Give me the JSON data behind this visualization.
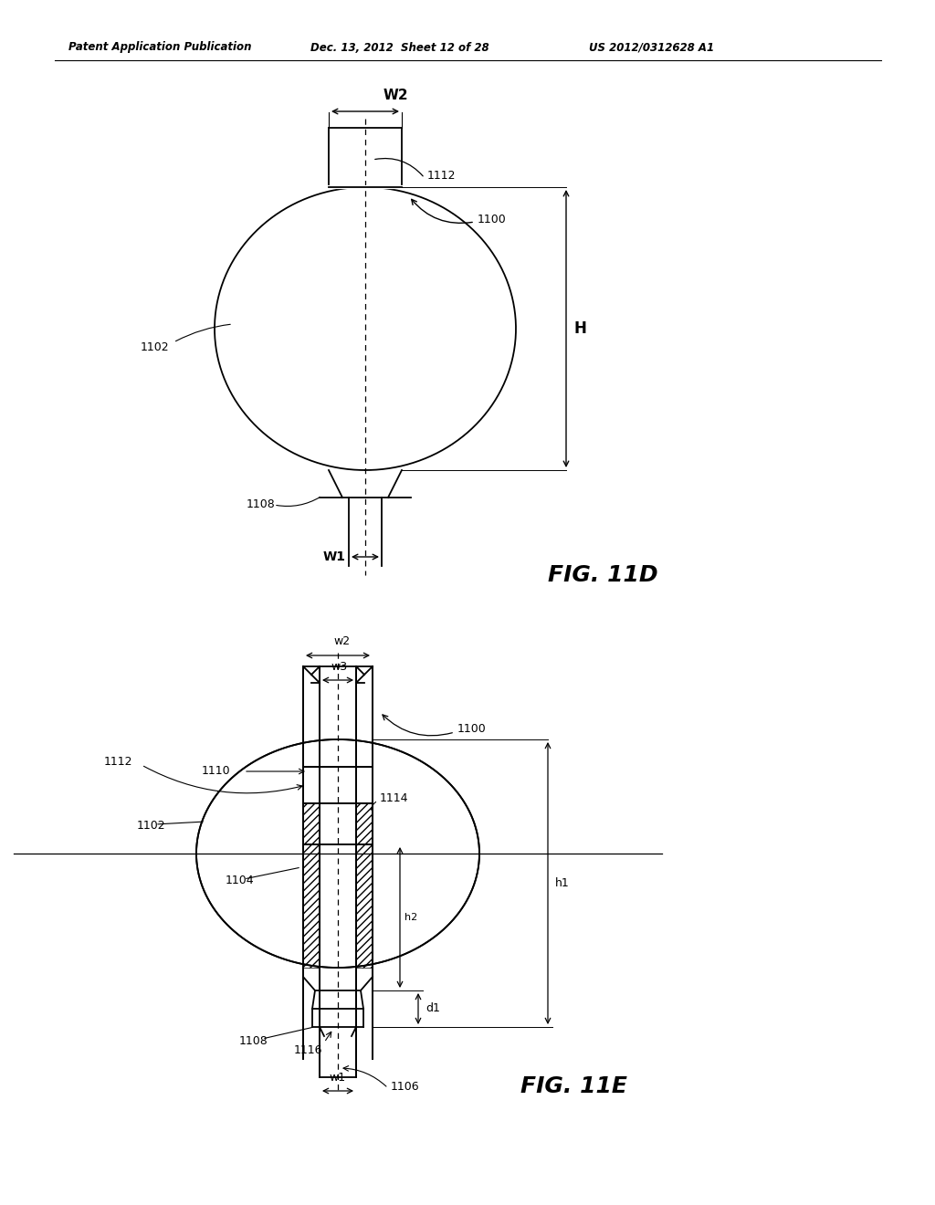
{
  "header_left": "Patent Application Publication",
  "header_mid": "Dec. 13, 2012  Sheet 12 of 28",
  "header_right": "US 2012/0312628 A1",
  "fig11d_label": "FIG. 11D",
  "fig11e_label": "FIG. 11E",
  "bg_color": "#ffffff",
  "line_color": "#000000",
  "fig11d": {
    "W2_label": "W2",
    "W1_label": "W1",
    "H_label": "H",
    "label_1112": "1112",
    "label_1102": "1102",
    "label_1108": "1108",
    "label_1100": "1100"
  },
  "fig11e": {
    "label_1100": "1100",
    "label_1102": "1102",
    "label_1104": "1104",
    "label_1106": "1106",
    "label_1108": "1108",
    "label_1110": "1110",
    "label_1112": "1112",
    "label_1114": "1114",
    "label_1116": "1116",
    "label_w1": "w1",
    "label_w2": "w2",
    "label_w3": "w3",
    "label_h1": "h1",
    "label_h2": "h2",
    "label_d1": "d1"
  }
}
